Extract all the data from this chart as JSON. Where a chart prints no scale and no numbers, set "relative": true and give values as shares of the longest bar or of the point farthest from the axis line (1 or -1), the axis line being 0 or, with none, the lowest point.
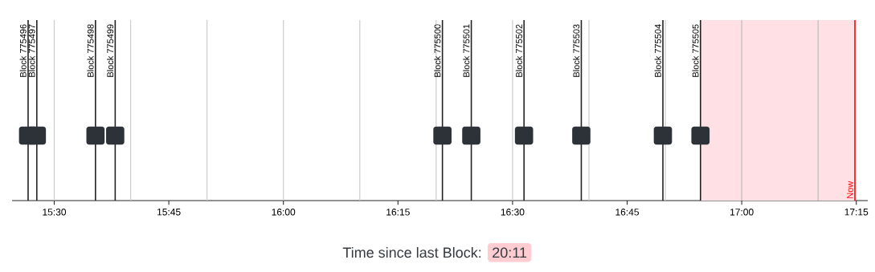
{
  "chart_data": {
    "type": "bar",
    "relative": true,
    "x": [
      15.443,
      15.462,
      15.59,
      15.633,
      16.347,
      16.41,
      16.525,
      16.65,
      16.828,
      16.91
    ],
    "series": [
      {
        "color": "#222222",
        "values": [
          1,
          1,
          1,
          1,
          1,
          1,
          1,
          1,
          1,
          1
        ]
      }
    ],
    "xlim": [
      15.408,
      17.275
    ],
    "xticks": [
      {
        "value": 15.5,
        "label": "15:30"
      },
      {
        "value": 15.75,
        "label": "15:45"
      },
      {
        "value": 16,
        "label": "16:00"
      },
      {
        "value": 16.25,
        "label": "16:15"
      },
      {
        "value": 16.5,
        "label": "16:30"
      },
      {
        "value": 16.75,
        "label": "16:45"
      },
      {
        "value": 17,
        "label": "17:00"
      },
      {
        "value": 17.25,
        "label": "17:15"
      }
    ],
    "bands": [
      {
        "axis": "x",
        "from": 16.91,
        "to": 17.247,
        "color": "#ffe1e5"
      }
    ],
    "ref_lines": [
      {
        "axis": "x",
        "value": 15.5,
        "color": "#cccccc"
      },
      {
        "axis": "x",
        "value": 15.6667,
        "color": "#cccccc"
      },
      {
        "axis": "x",
        "value": 15.8333,
        "color": "#cccccc"
      },
      {
        "axis": "x",
        "value": 16,
        "color": "#cccccc"
      },
      {
        "axis": "x",
        "value": 16.1667,
        "color": "#cccccc"
      },
      {
        "axis": "x",
        "value": 16.3333,
        "color": "#cccccc"
      },
      {
        "axis": "x",
        "value": 16.5,
        "color": "#cccccc"
      },
      {
        "axis": "x",
        "value": 16.6667,
        "color": "#cccccc"
      },
      {
        "axis": "x",
        "value": 16.8333,
        "color": "#cccccc"
      },
      {
        "axis": "x",
        "value": 17,
        "color": "#bbbbbb"
      },
      {
        "axis": "x",
        "value": 17.1667,
        "color": "#bbbbbb"
      },
      {
        "axis": "x",
        "value": 17.247,
        "label": "Now",
        "color": "#ff0000"
      }
    ],
    "annotations": [
      {
        "text": "Block 775496",
        "x": 15.443,
        "y": 1
      },
      {
        "text": "Block 775497",
        "x": 15.462,
        "y": 1
      },
      {
        "text": "Block 775498",
        "x": 15.59,
        "y": 1
      },
      {
        "text": "Block 775499",
        "x": 15.633,
        "y": 1
      },
      {
        "text": "Block 775500",
        "x": 16.347,
        "y": 1
      },
      {
        "text": "Block 775501",
        "x": 16.41,
        "y": 1
      },
      {
        "text": "Block 775502",
        "x": 16.525,
        "y": 1
      },
      {
        "text": "Block 775503",
        "x": 16.65,
        "y": 1
      },
      {
        "text": "Block 775504",
        "x": 16.828,
        "y": 1
      },
      {
        "text": "Block 775505",
        "x": 16.91,
        "y": 1
      },
      "Time since last Block:",
      "20:11"
    ]
  }
}
